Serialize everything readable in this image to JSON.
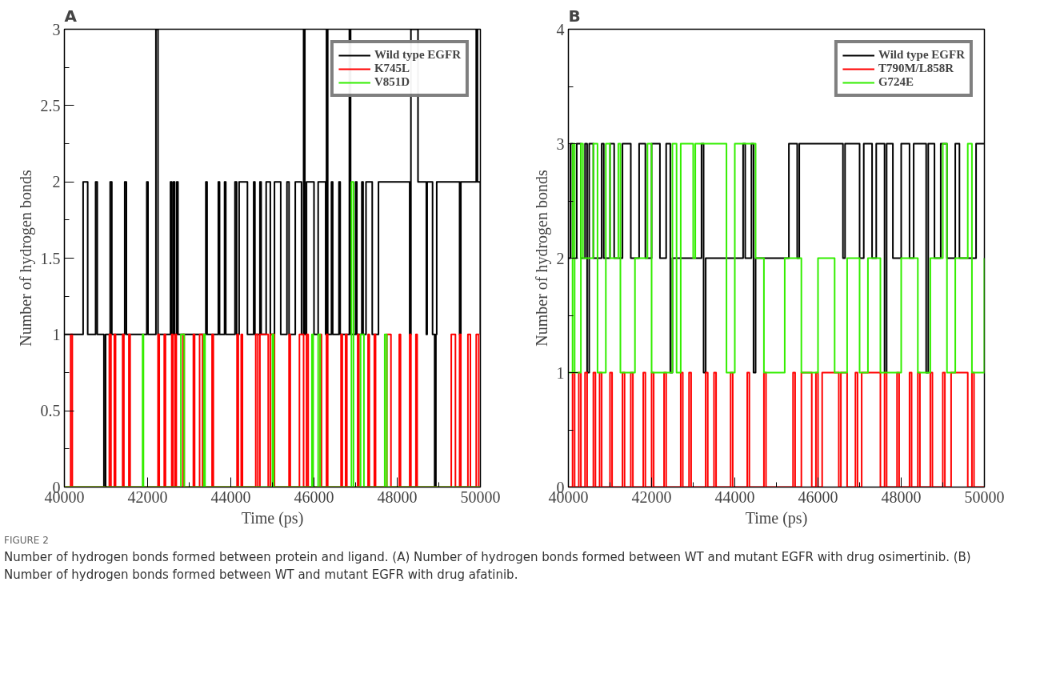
{
  "chart_data": [
    {
      "type": "step",
      "title": "A",
      "xlabel": "Time (ps)",
      "ylabel": "Number of hydrogen bonds",
      "xlim": [
        40000,
        50000
      ],
      "ylim": [
        0,
        3
      ],
      "xticks": [
        40000,
        {
          "value": 41000,
          "label": null
        },
        42000,
        {
          "value": 43000,
          "label": null
        },
        44000,
        {
          "value": 45000,
          "label": null
        },
        46000,
        {
          "value": 47000,
          "label": null
        },
        48000,
        {
          "value": 49000,
          "label": null
        },
        50000
      ],
      "yticks": [
        0,
        {
          "value": 0.25,
          "label": null
        },
        0.5,
        {
          "value": 0.75,
          "label": null
        },
        1,
        {
          "value": 1.25,
          "label": null
        },
        1.5,
        {
          "value": 1.75,
          "label": null
        },
        2,
        {
          "value": 2.25,
          "label": null
        },
        2.5,
        {
          "value": 2.75,
          "label": null
        },
        3
      ],
      "grid": false,
      "legend": "top right",
      "annotations": [
        "FIGURE 2",
        "Number of hydrogen bonds formed between protein and ligand. (A) Number of hydrogen bonds formed between WT and mutant EGFR with drug osimertinib. (B) Number of hydrogen bonds formed between WT and mutant EGFR with drug afatinib."
      ],
      "series": [
        {
          "name": "Wild type EGFR",
          "color": "#000000",
          "x": [
            40000,
            40450,
            40560,
            40750,
            40790,
            40950,
            40990,
            41100,
            41140,
            41450,
            41490,
            41980,
            42010,
            42200,
            42250,
            42550,
            42580,
            42620,
            42650,
            42700,
            42730,
            43400,
            43430,
            43700,
            43730,
            43850,
            43880,
            44100,
            44140,
            44200,
            44400,
            44550,
            44580,
            44700,
            44730,
            44850,
            44950,
            45050,
            45200,
            45350,
            45400,
            45550,
            45700,
            45750,
            45780,
            45820,
            46000,
            46100,
            46280,
            46300,
            46330,
            46420,
            46450,
            46600,
            46630,
            46850,
            46880,
            47000,
            47030,
            47150,
            47180,
            47250,
            47400,
            47550,
            48300,
            48330,
            48500,
            48700,
            48720,
            48850,
            48900,
            48930,
            48950,
            49500,
            49530,
            49900,
            49930,
            50000
          ],
          "values": [
            1,
            2,
            1,
            2,
            1,
            0,
            1,
            2,
            1,
            2,
            1,
            2,
            1,
            3,
            1,
            2,
            1,
            2,
            1,
            2,
            1,
            2,
            1,
            2,
            1,
            2,
            1,
            2,
            1,
            2,
            1,
            2,
            1,
            2,
            1,
            2,
            1,
            2,
            1,
            2,
            1,
            2,
            1,
            3,
            1,
            2,
            1,
            2,
            1,
            3,
            1,
            2,
            1,
            2,
            1,
            3,
            1,
            2,
            1,
            2,
            1,
            2,
            1,
            2,
            1,
            3,
            2,
            1,
            2,
            1,
            0,
            1,
            2,
            1,
            2,
            3,
            2,
            1
          ]
        },
        {
          "name": "K745L",
          "color": "#ff0000",
          "x": [
            40000,
            40150,
            40190,
            41080,
            41120,
            41200,
            41230,
            41400,
            41430,
            41550,
            41580,
            42250,
            42280,
            42400,
            42430,
            42580,
            42610,
            42660,
            42690,
            42850,
            42880,
            43100,
            43130,
            43250,
            43320,
            43550,
            43580,
            44150,
            44180,
            44250,
            44280,
            44600,
            44650,
            44700,
            44900,
            44950,
            45050,
            45400,
            45430,
            45650,
            45750,
            45820,
            45860,
            46150,
            46180,
            46300,
            46330,
            46650,
            46680,
            46760,
            46790,
            47050,
            47080,
            47300,
            47330,
            47450,
            47480,
            47750,
            47850,
            48050,
            48080,
            48300,
            48330,
            48450,
            48480,
            49300,
            49400,
            49500,
            49530,
            49700,
            49760,
            49900,
            49960,
            50000
          ],
          "values": [
            0,
            1,
            0,
            1,
            0,
            1,
            0,
            1,
            0,
            1,
            0,
            1,
            0,
            1,
            0,
            1,
            0,
            1,
            0,
            1,
            0,
            1,
            0,
            1,
            0,
            1,
            0,
            1,
            0,
            1,
            0,
            1,
            0,
            1,
            0,
            1,
            0,
            1,
            0,
            1,
            0,
            1,
            0,
            1,
            0,
            1,
            0,
            1,
            0,
            1,
            0,
            1,
            0,
            1,
            0,
            1,
            0,
            1,
            0,
            1,
            0,
            1,
            0,
            1,
            0,
            1,
            0,
            1,
            0,
            1,
            0,
            1,
            0,
            0
          ]
        },
        {
          "name": "V851D",
          "color": "#33ee00",
          "x": [
            40000,
            41880,
            41900,
            42800,
            42880,
            43350,
            43380,
            45000,
            45030,
            45950,
            45980,
            46100,
            46150,
            46900,
            46950,
            47120,
            47200,
            47700,
            47750,
            50000
          ],
          "values": [
            0,
            1,
            0,
            1,
            0,
            1,
            0,
            1,
            0,
            1,
            0,
            1,
            0,
            2,
            0,
            1,
            0,
            1,
            0,
            0
          ]
        }
      ]
    },
    {
      "type": "step",
      "title": "B",
      "xlabel": "Time (ps)",
      "ylabel": "Number of hydrogen bonds",
      "xlim": [
        40000,
        50000
      ],
      "ylim": [
        0,
        4
      ],
      "xticks": [
        40000,
        {
          "value": 41000,
          "label": null
        },
        42000,
        {
          "value": 43000,
          "label": null
        },
        44000,
        {
          "value": 45000,
          "label": null
        },
        46000,
        {
          "value": 47000,
          "label": null
        },
        48000,
        {
          "value": 49000,
          "label": null
        },
        50000
      ],
      "yticks": [
        0,
        {
          "value": 0.5,
          "label": null
        },
        1,
        {
          "value": 1.5,
          "label": null
        },
        2,
        {
          "value": 2.5,
          "label": null
        },
        3,
        {
          "value": 3.5,
          "label": null
        },
        4
      ],
      "grid": false,
      "legend": "top right",
      "series": [
        {
          "name": "Wild type EGFR",
          "color": "#000000",
          "x": [
            40000,
            40050,
            40100,
            40200,
            40300,
            40400,
            40450,
            40500,
            40600,
            40800,
            40850,
            41000,
            41100,
            41300,
            41500,
            41700,
            41850,
            42000,
            42200,
            42350,
            42450,
            42500,
            43200,
            43250,
            43300,
            44200,
            44250,
            44400,
            44450,
            44500,
            45150,
            45300,
            45500,
            45550,
            46600,
            46650,
            47000,
            47100,
            47300,
            47400,
            47600,
            47650,
            47800,
            48000,
            48200,
            48300,
            48600,
            48650,
            48800,
            48950,
            49100,
            49300,
            49400,
            49800,
            50000
          ],
          "values": [
            2,
            3,
            2,
            3,
            2,
            3,
            1,
            3,
            2,
            3,
            2,
            3,
            2,
            3,
            2,
            3,
            2,
            3,
            2,
            3,
            1,
            2,
            3,
            1,
            2,
            3,
            2,
            3,
            1,
            2,
            2,
            3,
            2,
            3,
            2,
            3,
            2,
            3,
            2,
            3,
            1,
            3,
            2,
            3,
            2,
            3,
            1,
            3,
            2,
            3,
            2,
            3,
            2,
            3,
            3
          ]
        },
        {
          "name": "T790M/L858R",
          "color": "#ff0000",
          "x": [
            40000,
            40100,
            40150,
            40250,
            40300,
            40400,
            40450,
            40600,
            40650,
            40750,
            40800,
            41000,
            41050,
            41300,
            41350,
            41500,
            41550,
            41800,
            41850,
            42000,
            42050,
            42300,
            42350,
            42700,
            42750,
            42900,
            42950,
            43300,
            43350,
            43500,
            43550,
            43900,
            43950,
            44300,
            44350,
            44700,
            44750,
            45400,
            45450,
            45600,
            45850,
            45950,
            46000,
            46100,
            46500,
            46550,
            46700,
            46900,
            46950,
            47050,
            47500,
            47600,
            47650,
            47900,
            47950,
            48200,
            48250,
            48400,
            48450,
            48700,
            48750,
            49000,
            49050,
            49200,
            49600,
            49700,
            49750,
            50000
          ],
          "values": [
            0,
            1,
            0,
            1,
            0,
            1,
            0,
            1,
            0,
            1,
            0,
            1,
            0,
            1,
            0,
            1,
            0,
            1,
            0,
            1,
            0,
            1,
            0,
            1,
            0,
            1,
            0,
            1,
            0,
            1,
            0,
            1,
            0,
            1,
            0,
            1,
            0,
            1,
            0,
            1,
            0,
            1,
            0,
            1,
            0,
            1,
            0,
            1,
            0,
            1,
            0,
            1,
            0,
            1,
            0,
            1,
            0,
            1,
            0,
            1,
            0,
            1,
            0,
            1,
            0,
            1,
            0,
            0
          ]
        },
        {
          "name": "G724E",
          "color": "#33ee00",
          "x": [
            40000,
            40100,
            40150,
            40300,
            40350,
            40600,
            40700,
            40900,
            41000,
            41200,
            41250,
            41600,
            41900,
            42000,
            42500,
            42600,
            42700,
            43000,
            43050,
            43800,
            44000,
            44500,
            44700,
            45200,
            45600,
            46000,
            46400,
            46700,
            47000,
            47200,
            47500,
            48000,
            48400,
            48700,
            49000,
            49100,
            49300,
            49600,
            49700,
            50000
          ],
          "values": [
            1,
            3,
            1,
            3,
            2,
            3,
            1,
            3,
            2,
            3,
            1,
            2,
            3,
            1,
            3,
            1,
            3,
            2,
            3,
            1,
            3,
            2,
            1,
            2,
            1,
            2,
            1,
            2,
            1,
            2,
            1,
            2,
            1,
            2,
            3,
            1,
            2,
            3,
            1,
            2
          ]
        }
      ]
    }
  ]
}
